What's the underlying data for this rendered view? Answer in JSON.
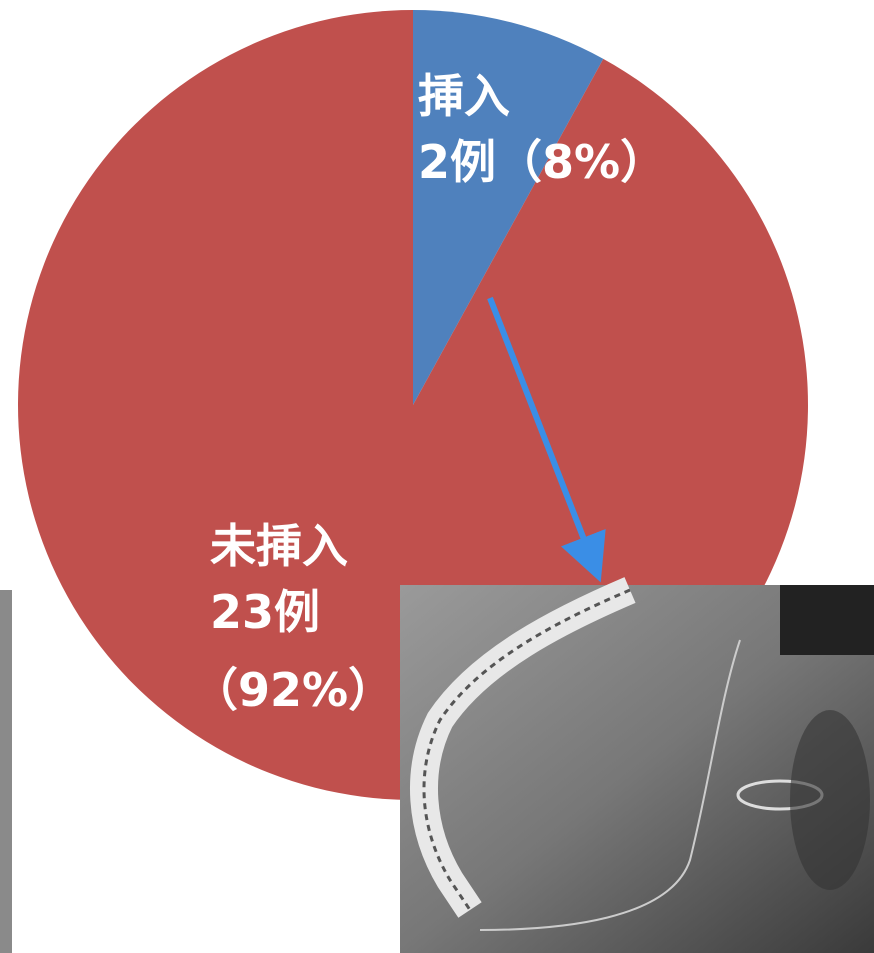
{
  "chart_data": {
    "type": "pie",
    "categories": [
      "挿入",
      "未挿入"
    ],
    "values": [
      2,
      23
    ],
    "value_labels": [
      "2例",
      "23例"
    ],
    "percent_labels": [
      "（8%）",
      "（92%）"
    ],
    "colors": [
      "#4f81bd",
      "#c0504d"
    ]
  }
}
